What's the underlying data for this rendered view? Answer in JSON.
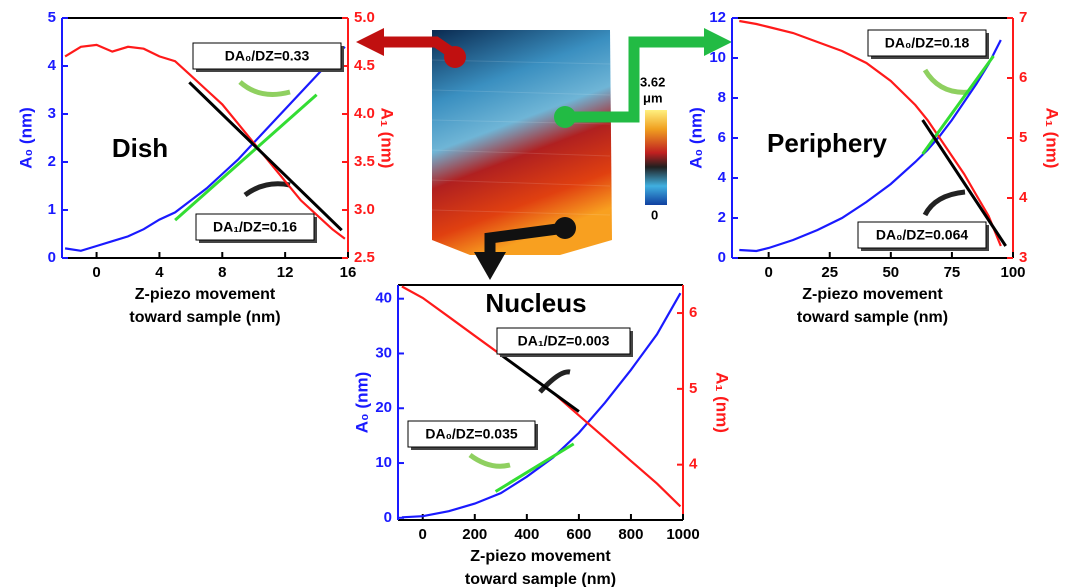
{
  "chart_data": [
    {
      "type": "line",
      "title": "Dish",
      "xlabel": [
        "Z-piezo movement",
        "toward sample (nm)"
      ],
      "ylabel": "A₀ (nm)",
      "y2label": "A₁ (nm)",
      "xlim": [
        -2.2,
        16
      ],
      "xticks": [
        0,
        4,
        8,
        12,
        16
      ],
      "ylim": [
        0,
        5
      ],
      "yticks": [
        0,
        1,
        2,
        3,
        4,
        5
      ],
      "y2lim": [
        2.5,
        5
      ],
      "y2ticks": [
        2.5,
        {
          "value": 3,
          "label": "3.0"
        },
        3.5,
        {
          "value": 4,
          "label": "4.0"
        },
        4.5,
        {
          "value": 5,
          "label": "5.0"
        }
      ],
      "series": [
        {
          "color": "#1a1aff",
          "x": [
            -2,
            -1,
            0,
            1,
            2,
            3,
            4,
            5,
            6,
            7,
            8,
            9,
            10,
            11,
            12,
            13,
            14,
            15,
            15.8
          ],
          "values": [
            0.2,
            0.15,
            0.25,
            0.35,
            0.45,
            0.6,
            0.8,
            0.95,
            1.2,
            1.45,
            1.75,
            2.05,
            2.4,
            2.75,
            3.1,
            3.45,
            3.8,
            4.15,
            4.4
          ]
        },
        {
          "color": "#ff1a1a",
          "axis": "y2",
          "x": [
            -2,
            -1,
            0,
            1,
            2,
            3,
            4,
            5,
            6,
            7,
            8,
            9,
            10,
            11,
            12,
            13,
            14,
            15,
            15.8
          ],
          "values": [
            4.6,
            4.7,
            4.72,
            4.65,
            4.7,
            4.68,
            4.6,
            4.55,
            4.4,
            4.25,
            4.1,
            3.9,
            3.7,
            3.5,
            3.3,
            3.1,
            2.95,
            2.8,
            2.7
          ]
        },
        {
          "color": "#33dd33",
          "x": [
            5,
            14
          ],
          "values": [
            0.79,
            3.4
          ]
        },
        {
          "color": "#000000",
          "axis": "y2",
          "x": [
            5.9,
            15.6
          ],
          "values": [
            4.33,
            2.79
          ]
        }
      ],
      "annotations": [
        "DA₀/DZ=0.33",
        "DA₁/DZ=0.16"
      ]
    },
    {
      "type": "line",
      "title": "Periphery",
      "xlabel": [
        "Z-piezo movement",
        "toward sample (nm)"
      ],
      "ylabel": "A₀ (nm)",
      "y2label": "A₁ (nm)",
      "xlim": [
        -15,
        100
      ],
      "xticks": [
        0,
        25,
        50,
        75,
        100
      ],
      "ylim": [
        0,
        12
      ],
      "yticks": [
        0,
        2,
        4,
        6,
        8,
        10,
        12
      ],
      "y2lim": [
        3,
        7
      ],
      "y2ticks": [
        3,
        4,
        5,
        6,
        7
      ],
      "series": [
        {
          "color": "#1a1aff",
          "x": [
            -12,
            -5,
            0,
            10,
            20,
            30,
            40,
            50,
            60,
            65,
            70,
            75,
            80,
            85,
            90,
            95
          ],
          "values": [
            0.4,
            0.35,
            0.5,
            0.9,
            1.4,
            2.0,
            2.8,
            3.7,
            4.8,
            5.4,
            6.1,
            6.9,
            7.8,
            8.7,
            9.7,
            10.9
          ]
        },
        {
          "color": "#ff1a1a",
          "axis": "y2",
          "x": [
            -12,
            -5,
            0,
            10,
            20,
            30,
            40,
            50,
            60,
            65,
            70,
            75,
            80,
            85,
            90,
            95
          ],
          "values": [
            6.95,
            6.9,
            6.85,
            6.75,
            6.6,
            6.45,
            6.25,
            5.95,
            5.55,
            5.3,
            5.0,
            4.7,
            4.4,
            4.05,
            3.7,
            3.2
          ]
        },
        {
          "color": "#33dd33",
          "x": [
            63,
            92
          ],
          "values": [
            5.2,
            10.1
          ]
        },
        {
          "color": "#000000",
          "axis": "y2",
          "x": [
            63,
            97
          ],
          "values": [
            5.3,
            3.2
          ]
        }
      ],
      "annotations": [
        "DA₀/DZ=0.18",
        "DA₀/DZ=0.064"
      ]
    },
    {
      "type": "line",
      "title": "Nucleus",
      "xlabel": [
        "Z-piezo movement",
        "toward sample (nm)"
      ],
      "ylabel": "A₀ (nm)",
      "y2label": "A₁ (nm)",
      "xlim": [
        -95,
        1000
      ],
      "xticks": [
        0,
        200,
        400,
        600,
        800,
        1000
      ],
      "ylim": [
        -0.4,
        42.5
      ],
      "yticks": [
        0,
        10,
        20,
        30,
        40
      ],
      "y2lim": [
        3.27,
        6.37
      ],
      "y2ticks": [
        4,
        5,
        6
      ],
      "series": [
        {
          "color": "#1a1aff",
          "x": [
            -80,
            0,
            100,
            200,
            300,
            400,
            500,
            600,
            700,
            800,
            900,
            990
          ],
          "values": [
            0.1,
            0.3,
            1.2,
            2.6,
            4.5,
            7.5,
            11,
            15.5,
            21,
            27,
            33.5,
            41
          ]
        },
        {
          "color": "#ff1a1a",
          "axis": "y2",
          "x": [
            -80,
            0,
            100,
            200,
            300,
            400,
            500,
            600,
            700,
            800,
            900,
            990
          ],
          "values": [
            6.35,
            6.2,
            5.95,
            5.7,
            5.45,
            5.2,
            4.95,
            4.65,
            4.35,
            4.05,
            3.75,
            3.45
          ]
        },
        {
          "color": "#33dd33",
          "x": [
            280,
            580
          ],
          "values": [
            4.8,
            13.5
          ]
        },
        {
          "color": "#000000",
          "axis": "y2",
          "x": [
            300,
            600
          ],
          "values": [
            5.45,
            4.7
          ]
        }
      ],
      "annotations": [
        "DA₁/DZ=0.003",
        "DA₀/DZ=0.035"
      ]
    }
  ],
  "afm_image": {
    "max_label": "3.62",
    "unit": "μm",
    "min_label": "0"
  }
}
